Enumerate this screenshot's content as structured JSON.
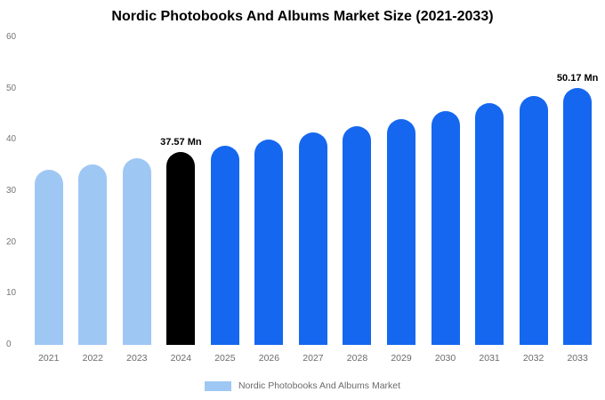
{
  "title": "Nordic Photobooks And Albums Market Size (2021-2033)",
  "legend": {
    "label": "Nordic Photobooks And Albums Market",
    "swatch_color": "#9ec7f4"
  },
  "colors": {
    "light_blue": "#9ec7f4",
    "highlight_black": "#000000",
    "primary_blue": "#1567f0",
    "axis_text": "#757575"
  },
  "chart_data": {
    "type": "bar",
    "title": "Nordic Photobooks And Albums Market Size (2021-2033)",
    "unit": "Mn",
    "categories": [
      "2021",
      "2022",
      "2023",
      "2024",
      "2025",
      "2026",
      "2027",
      "2028",
      "2029",
      "2030",
      "2031",
      "2032",
      "2033"
    ],
    "values": [
      34.1,
      35.2,
      36.4,
      37.57,
      38.8,
      40.1,
      41.4,
      42.7,
      44.1,
      45.6,
      47.1,
      48.6,
      50.17
    ],
    "bar_colors": [
      "#9ec7f4",
      "#9ec7f4",
      "#9ec7f4",
      "#000000",
      "#1567f0",
      "#1567f0",
      "#1567f0",
      "#1567f0",
      "#1567f0",
      "#1567f0",
      "#1567f0",
      "#1567f0",
      "#1567f0"
    ],
    "ylim": [
      0,
      60
    ],
    "yticks": [
      0,
      10,
      20,
      30,
      40,
      50,
      60
    ],
    "grid": false,
    "legend_position": "bottom",
    "annotations": [
      {
        "category": "2024",
        "text": "37.57 Mn"
      },
      {
        "category": "2033",
        "text": "50.17 Mn"
      }
    ]
  }
}
